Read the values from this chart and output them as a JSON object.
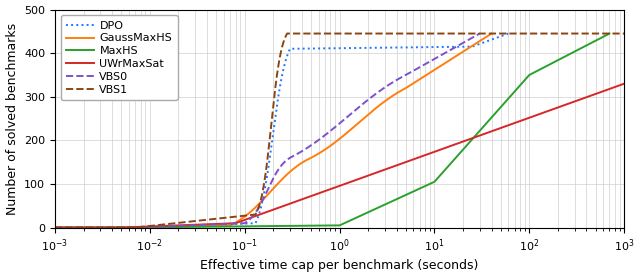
{
  "title": "",
  "xlabel": "Effective time cap per benchmark (seconds)",
  "ylabel": "Number of solved benchmarks",
  "ylim": [
    0,
    500
  ],
  "yticks": [
    0,
    100,
    200,
    300,
    400,
    500
  ],
  "legend_labels": [
    "DPO",
    "GaussMaxHS",
    "MaxHS",
    "UWrMaxSat",
    "VBS0",
    "VBS1"
  ],
  "legend_colors": [
    "#1f77ff",
    "#ff7f0e",
    "#2ca02c",
    "#d62728",
    "#7b52cc",
    "#8B4513"
  ],
  "legend_styles": [
    "dotted",
    "solid",
    "solid",
    "solid",
    "dashed",
    "dashed"
  ],
  "figsize": [
    6.4,
    2.78
  ],
  "dpi": 100
}
